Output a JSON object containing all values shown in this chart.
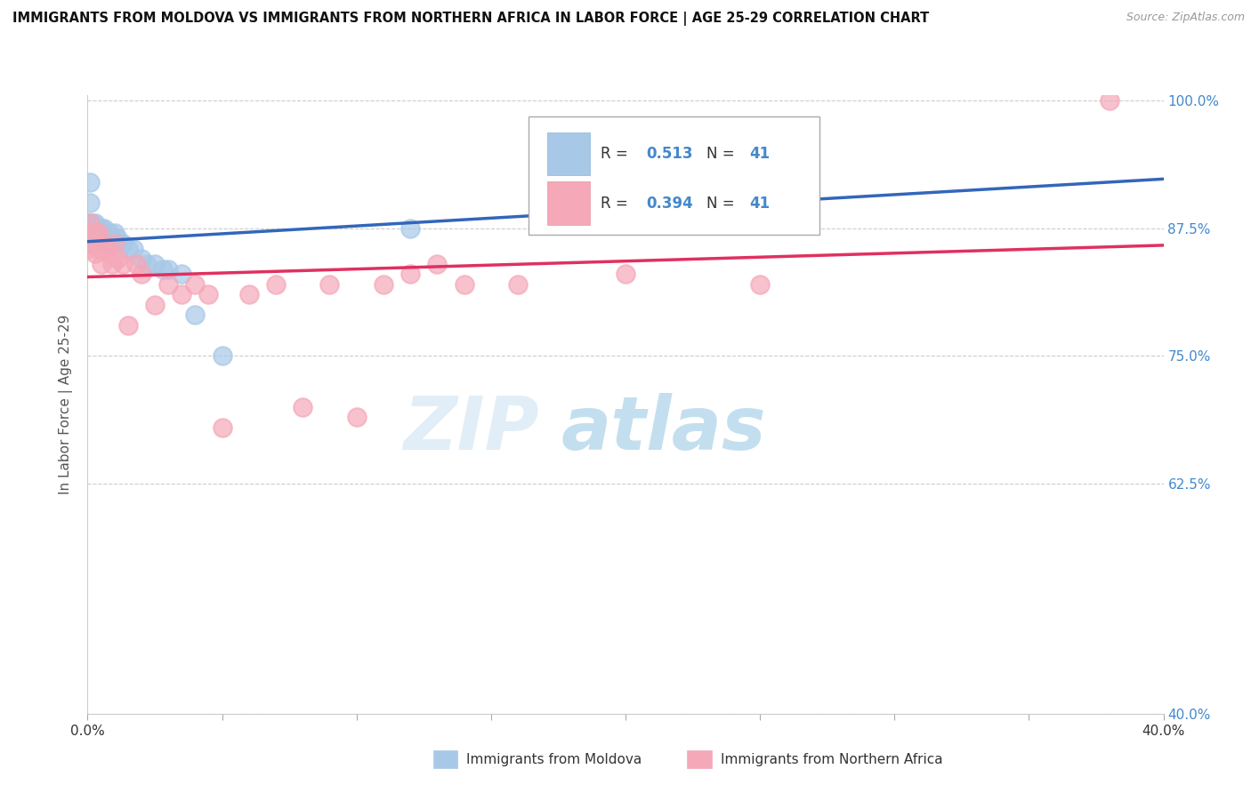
{
  "title": "IMMIGRANTS FROM MOLDOVA VS IMMIGRANTS FROM NORTHERN AFRICA IN LABOR FORCE | AGE 25-29 CORRELATION CHART",
  "source": "Source: ZipAtlas.com",
  "ylabel": "In Labor Force | Age 25-29",
  "xlim": [
    0.0,
    0.4
  ],
  "ylim": [
    0.4,
    1.005
  ],
  "ytick_positions": [
    0.4,
    0.625,
    0.75,
    0.875,
    1.0
  ],
  "yticklabels": [
    "40.0%",
    "62.5%",
    "75.0%",
    "87.5%",
    "100.0%"
  ],
  "R_moldova": 0.513,
  "N_moldova": 41,
  "R_africa": 0.394,
  "N_africa": 41,
  "moldova_color": "#a8c8e8",
  "africa_color": "#f4a8b8",
  "moldova_line_color": "#3366bb",
  "africa_line_color": "#e03060",
  "background_color": "#ffffff",
  "watermark_zip": "ZIP",
  "watermark_atlas": "atlas",
  "moldova_x": [
    0.0,
    0.0,
    0.0,
    0.0,
    0.0,
    0.001,
    0.001,
    0.001,
    0.002,
    0.002,
    0.002,
    0.003,
    0.003,
    0.003,
    0.004,
    0.004,
    0.004,
    0.005,
    0.005,
    0.006,
    0.006,
    0.007,
    0.007,
    0.008,
    0.008,
    0.009,
    0.01,
    0.011,
    0.013,
    0.015,
    0.017,
    0.02,
    0.022,
    0.025,
    0.028,
    0.03,
    0.035,
    0.04,
    0.05,
    0.12,
    0.17
  ],
  "moldova_y": [
    0.88,
    0.875,
    0.87,
    0.865,
    0.86,
    0.92,
    0.9,
    0.88,
    0.88,
    0.875,
    0.87,
    0.88,
    0.875,
    0.87,
    0.875,
    0.87,
    0.865,
    0.875,
    0.87,
    0.875,
    0.865,
    0.87,
    0.865,
    0.87,
    0.86,
    0.865,
    0.87,
    0.865,
    0.86,
    0.855,
    0.855,
    0.845,
    0.84,
    0.84,
    0.835,
    0.835,
    0.83,
    0.79,
    0.75,
    0.875,
    0.97
  ],
  "africa_x": [
    0.0,
    0.0,
    0.001,
    0.001,
    0.002,
    0.002,
    0.003,
    0.003,
    0.004,
    0.004,
    0.005,
    0.005,
    0.006,
    0.007,
    0.008,
    0.009,
    0.01,
    0.011,
    0.013,
    0.015,
    0.018,
    0.02,
    0.025,
    0.03,
    0.035,
    0.04,
    0.045,
    0.05,
    0.06,
    0.07,
    0.08,
    0.09,
    0.1,
    0.11,
    0.12,
    0.13,
    0.14,
    0.16,
    0.2,
    0.25,
    0.38
  ],
  "africa_y": [
    0.865,
    0.855,
    0.88,
    0.86,
    0.87,
    0.86,
    0.87,
    0.85,
    0.87,
    0.855,
    0.86,
    0.84,
    0.855,
    0.855,
    0.85,
    0.84,
    0.86,
    0.845,
    0.84,
    0.78,
    0.84,
    0.83,
    0.8,
    0.82,
    0.81,
    0.82,
    0.81,
    0.68,
    0.81,
    0.82,
    0.7,
    0.82,
    0.69,
    0.82,
    0.83,
    0.84,
    0.82,
    0.82,
    0.83,
    0.82,
    1.0
  ]
}
